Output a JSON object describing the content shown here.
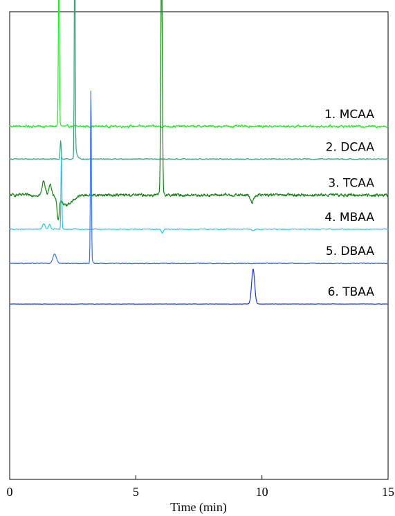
{
  "chart_data": {
    "type": "line",
    "title": "",
    "xlabel": "Time (min)",
    "ylabel": "",
    "xlim": [
      0,
      15
    ],
    "xticks": [
      0,
      5,
      10,
      15
    ],
    "grid": false,
    "legend": "labels-above-traces-right",
    "y_scale": "arbitrary stacked offsets",
    "series": [
      {
        "name": "1. MCAA",
        "color": "#22ee22",
        "baseline": 0.755,
        "noise": 0.004,
        "peaks": [
          {
            "t": 1.95,
            "h": 0.36,
            "w": 0.02,
            "tail": 0.03
          }
        ]
      },
      {
        "name": "2. DCAA",
        "color": "#3a9e78",
        "baseline": 0.685,
        "noise": 0.0015,
        "peaks": [
          {
            "t": 2.58,
            "h": 0.54,
            "w": 0.018,
            "tail": 0.05
          },
          {
            "t": 2.02,
            "h": 0.04,
            "w": 0.02,
            "tail": 0.01
          }
        ]
      },
      {
        "name": "3. TCAA",
        "color": "#158015",
        "baseline": 0.608,
        "noise": 0.005,
        "peaks": [
          {
            "t": 6.02,
            "h": 0.5,
            "w": 0.03,
            "tail": 0.04
          },
          {
            "t": 1.35,
            "h": 0.03,
            "w": 0.06,
            "tail": 0.02
          },
          {
            "t": 1.6,
            "h": 0.025,
            "w": 0.05,
            "tail": 0.02
          },
          {
            "t": 1.92,
            "h": -0.045,
            "w": 0.04,
            "tail": 0.02
          },
          {
            "t": 2.25,
            "h": -0.02,
            "w": 0.25,
            "tail": 0.1
          },
          {
            "t": 9.6,
            "h": -0.016,
            "w": 0.06,
            "tail": 0.12
          }
        ]
      },
      {
        "name": "4. MBAA",
        "color": "#26c6e8",
        "baseline": 0.535,
        "noise": 0.0015,
        "peaks": [
          {
            "t": 2.05,
            "h": 0.16,
            "w": 0.018,
            "tail": 0.02
          },
          {
            "t": 1.35,
            "h": 0.012,
            "w": 0.05,
            "tail": 0.01
          },
          {
            "t": 1.58,
            "h": 0.01,
            "w": 0.04,
            "tail": 0.01
          },
          {
            "t": 6.05,
            "h": -0.008,
            "w": 0.04,
            "tail": 0.03
          },
          {
            "t": 9.65,
            "h": -0.003,
            "w": 0.05,
            "tail": 0.02
          }
        ]
      },
      {
        "name": "5. DBAA",
        "color": "#3a72e0",
        "baseline": 0.462,
        "noise": 0.0012,
        "peaks": [
          {
            "t": 3.22,
            "h": 0.37,
            "w": 0.02,
            "tail": 0.03
          },
          {
            "t": 1.78,
            "h": 0.02,
            "w": 0.07,
            "tail": 0.05
          }
        ]
      },
      {
        "name": "6. TBAA",
        "color": "#1a3acc",
        "baseline": 0.375,
        "noise": 0.0006,
        "peaks": [
          {
            "t": 9.65,
            "h": 0.075,
            "w": 0.06,
            "tail": 0.04
          }
        ]
      }
    ]
  }
}
